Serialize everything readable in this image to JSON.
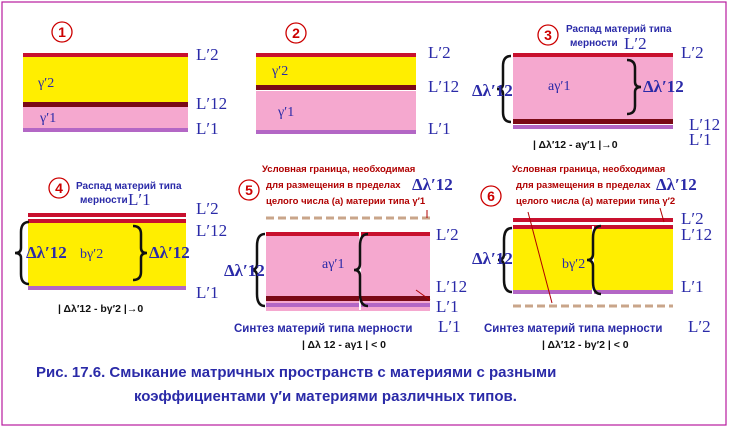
{
  "panels": [
    {
      "number": "1",
      "gamma_top": "γ′2",
      "gamma_bottom": "γ′1",
      "label_top": "L′2",
      "label_mid": "L′12",
      "label_bottom": "L′1"
    },
    {
      "number": "2",
      "gamma_top": "γ′2",
      "gamma_bottom": "γ′1",
      "label_top": "L′2",
      "label_mid": "L′12",
      "label_bottom": "L′1"
    },
    {
      "number": "3",
      "title_line1": "Распад материй типа",
      "title_line2": "мерности",
      "title_L": "L′2",
      "delta_left": "Δλ′12",
      "delta_right": "Δλ′12",
      "gamma": "aγ′1",
      "label_top": "L′2",
      "label_mid": "L′12",
      "label_bottom": "L′1",
      "formula": "| Δλ′12 - aγ′1 |→0"
    },
    {
      "number": "4",
      "title_line1": "Распад  материй типа",
      "title_line2": "мерности",
      "title_L": "L′1",
      "delta_left": "Δλ′12",
      "delta_right": "Δλ′12",
      "gamma": "bγ′2",
      "label_top": "L′2",
      "label_mid": "L′12",
      "label_bottom": "L′1",
      "formula": "| Δλ′12 - bγ′2 |→0"
    },
    {
      "number": "5",
      "note_line1": "Условная граница, необходимая",
      "note_line2": "для размещения в пределах",
      "note_delta": "Δλ′12",
      "note_line3": "целого числа (а)  материи типа γ′1",
      "delta_left": "Δλ′12",
      "gamma": "aγ′1",
      "label_top": "L′2",
      "label_mid": "L′12",
      "label_bottom": "L′1",
      "synthesis": "Синтез материй типа мерности",
      "synthesis_L": "L′1",
      "formula": "| Δλ 12 - aγ1  |  <  0"
    },
    {
      "number": "6",
      "note_line1": "Условная граница, необходимая",
      "note_line2": "для размещения в пределах",
      "note_delta": "Δλ′12",
      "note_line3": "целого числа (а)  материи типа γ′2",
      "delta_left": "Δλ′12",
      "gamma": "bγ′2",
      "label_top": "L′2",
      "label_mid": "L′12",
      "label_bottom": "L′1",
      "synthesis": "Синтез материй типа мерности",
      "synthesis_L": "L′2",
      "formula": "| Δλ′12 - bγ′2 |  <  0"
    }
  ],
  "caption": {
    "line1": "Рис. 17.6. Смыкание матричных пространств с материями с  разными",
    "line2": "коэффициентами  γ′и  материями  различных типов."
  },
  "colors": {
    "yellow": "#ffee00",
    "pink": "#f5a8cf",
    "red_band": "#c8102e",
    "dark_band": "#7a0a16",
    "purple_band": "#b367c5",
    "text_blue": "#2a2aa8",
    "border": "#b71c9e"
  }
}
